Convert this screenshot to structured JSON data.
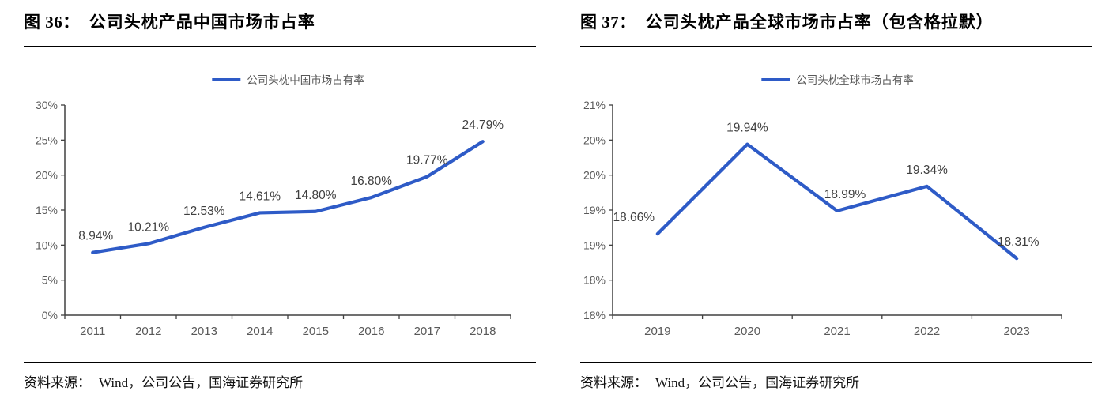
{
  "panels": [
    {
      "figure_label": "图 36：",
      "title": "公司头枕产品中国市场市占率",
      "legend_label": "公司头枕中国市场占有率",
      "source_prefix": "资料来源：",
      "source_text": "Wind，公司公告，国海证券研究所"
    },
    {
      "figure_label": "图 37：",
      "title": "公司头枕产品全球市场市占率（包含格拉默）",
      "legend_label": "公司头枕全球市场占有率",
      "source_prefix": "资料来源：",
      "source_text": "Wind，公司公告，国海证券研究所"
    }
  ],
  "colors": {
    "line": "#2E5BC7",
    "axis_text": "#595959",
    "data_label": "#3F3F3F",
    "axis_line": "#404040",
    "rule": "#000000"
  },
  "chart_data": [
    {
      "type": "line",
      "title": "公司头枕产品中国市场市占率",
      "legend": [
        "公司头枕中国市场占有率"
      ],
      "legend_position": "top",
      "grid": false,
      "categories": [
        "2011",
        "2012",
        "2013",
        "2014",
        "2015",
        "2016",
        "2017",
        "2018"
      ],
      "series": [
        {
          "name": "公司头枕中国市场占有率",
          "values": [
            8.94,
            10.21,
            12.53,
            14.61,
            14.8,
            16.8,
            19.77,
            24.79
          ]
        }
      ],
      "data_labels": [
        "8.94%",
        "10.21%",
        "12.53%",
        "14.61%",
        "14.80%",
        "16.80%",
        "19.77%",
        "24.79%"
      ],
      "xlabel": "",
      "ylabel": "",
      "ylim": [
        0,
        30
      ],
      "ytick_step": 5,
      "ytick_labels_top_down": [
        "30%",
        "25%",
        "20%",
        "15%",
        "10%",
        "5%",
        "0%"
      ],
      "line_color": "#2E5BC7"
    },
    {
      "type": "line",
      "title": "公司头枕产品全球市场市占率（包含格拉默）",
      "legend": [
        "公司头枕全球市场占有率"
      ],
      "legend_position": "top",
      "grid": false,
      "categories": [
        "2019",
        "2020",
        "2021",
        "2022",
        "2023"
      ],
      "series": [
        {
          "name": "公司头枕全球市场占有率",
          "values": [
            18.66,
            19.94,
            18.99,
            19.34,
            18.31
          ]
        }
      ],
      "data_labels": [
        "18.66%",
        "19.94%",
        "18.99%",
        "19.34%",
        "18.31%"
      ],
      "xlabel": "",
      "ylabel": "",
      "ylim": [
        17.5,
        20.5
      ],
      "ytick_step": 0.5,
      "ytick_labels_top_down": [
        "21%",
        "20%",
        "20%",
        "19%",
        "19%",
        "18%",
        "18%"
      ],
      "line_color": "#2E5BC7"
    }
  ]
}
